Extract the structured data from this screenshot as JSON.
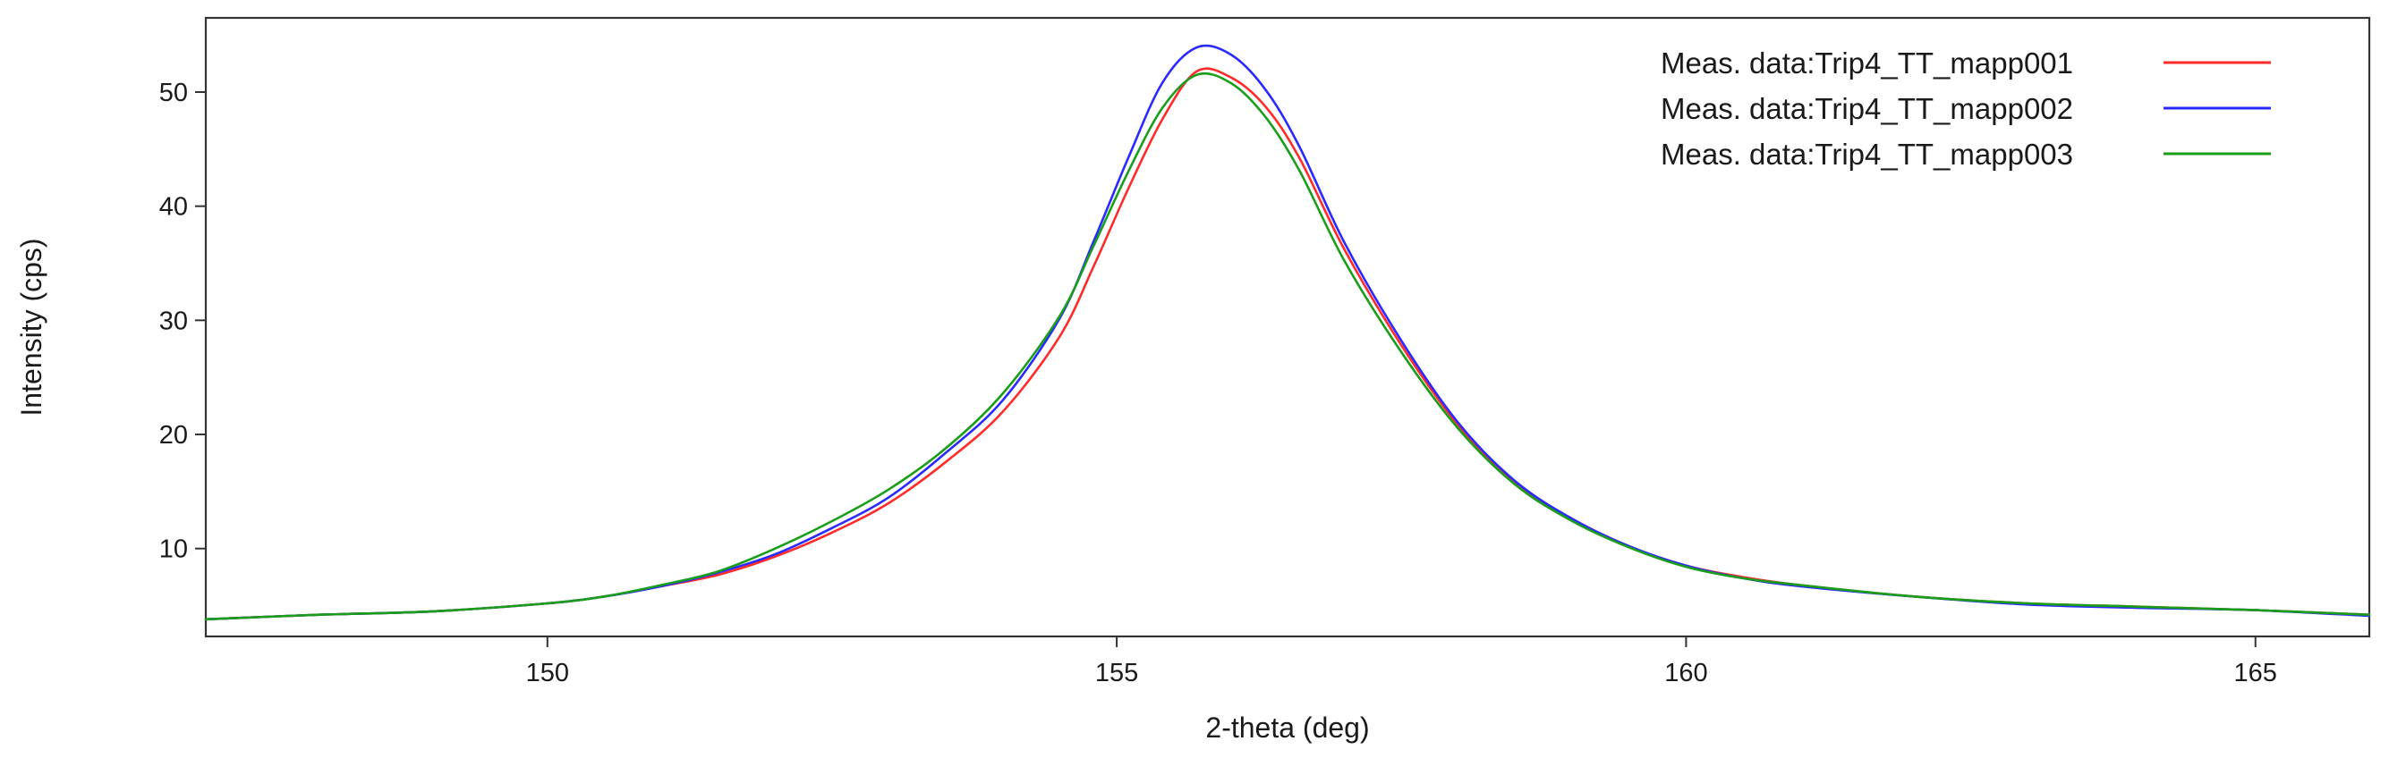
{
  "chart_data": {
    "type": "line",
    "xlabel": "2-theta (deg)",
    "ylabel": "Intensity (cps)",
    "xlim": [
      147,
      166
    ],
    "ylim": [
      2.3,
      56.5
    ],
    "x_ticks": [
      150,
      155,
      160,
      165
    ],
    "y_ticks": [
      10,
      20,
      30,
      40,
      50
    ],
    "grid": false,
    "legend_position": "top-right",
    "series": [
      {
        "name": "Meas.  data:Trip4_TT_mapp001",
        "color": "#ff2a2a",
        "x": [
          147,
          148,
          149,
          150,
          150.5,
          151,
          151.5,
          152,
          152.5,
          153,
          153.5,
          154,
          154.5,
          154.8,
          155.1,
          155.4,
          155.7,
          156,
          156.3,
          156.6,
          157,
          157.5,
          158,
          158.5,
          159,
          159.5,
          160,
          160.5,
          161,
          162,
          163,
          164,
          165,
          166
        ],
        "y": [
          3.8,
          4.2,
          4.5,
          5.2,
          5.8,
          6.7,
          7.7,
          9.3,
          11.4,
          14.0,
          17.6,
          22.0,
          28.6,
          34.8,
          41.5,
          47.6,
          51.8,
          51.3,
          48.8,
          44.3,
          36.2,
          27.8,
          20.8,
          15.8,
          12.6,
          10.2,
          8.5,
          7.5,
          6.8,
          5.8,
          5.2,
          4.9,
          4.6,
          4.2
        ]
      },
      {
        "name": "Meas.  data:Trip4_TT_mapp002",
        "color": "#2a2aff",
        "x": [
          147,
          148,
          149,
          150,
          150.5,
          151,
          151.5,
          152,
          152.5,
          153,
          153.5,
          154,
          154.5,
          154.8,
          155.1,
          155.4,
          155.7,
          156,
          156.3,
          156.6,
          157,
          157.5,
          158,
          158.5,
          159,
          159.5,
          160,
          160.5,
          161,
          162,
          163,
          164,
          165,
          166
        ],
        "y": [
          3.8,
          4.2,
          4.5,
          5.2,
          5.8,
          6.7,
          7.9,
          9.5,
          11.8,
          14.5,
          18.4,
          23.0,
          30.2,
          37.0,
          44.2,
          50.8,
          53.9,
          53.3,
          50.3,
          45.3,
          36.8,
          28.2,
          21.0,
          15.9,
          12.6,
          10.2,
          8.5,
          7.4,
          6.7,
          5.8,
          5.1,
          4.8,
          4.6,
          4.1
        ]
      },
      {
        "name": "Meas.  data:Trip4_TT_mapp003",
        "color": "#1a9e1a",
        "x": [
          147,
          148,
          149,
          150,
          150.5,
          151,
          151.5,
          152,
          152.5,
          153,
          153.5,
          154,
          154.5,
          154.8,
          155.1,
          155.4,
          155.7,
          156,
          156.3,
          156.6,
          157,
          157.5,
          158,
          158.5,
          159,
          159.5,
          160,
          160.5,
          161,
          162,
          163,
          164,
          165,
          166
        ],
        "y": [
          3.8,
          4.2,
          4.5,
          5.2,
          5.8,
          6.8,
          8.0,
          10.0,
          12.4,
          15.2,
          18.8,
          23.6,
          30.4,
          36.6,
          43.0,
          48.6,
          51.5,
          50.8,
          47.9,
          43.2,
          35.2,
          27.2,
          20.5,
          15.6,
          12.4,
          10.1,
          8.4,
          7.4,
          6.8,
          5.8,
          5.2,
          4.9,
          4.6,
          4.2
        ]
      }
    ]
  }
}
